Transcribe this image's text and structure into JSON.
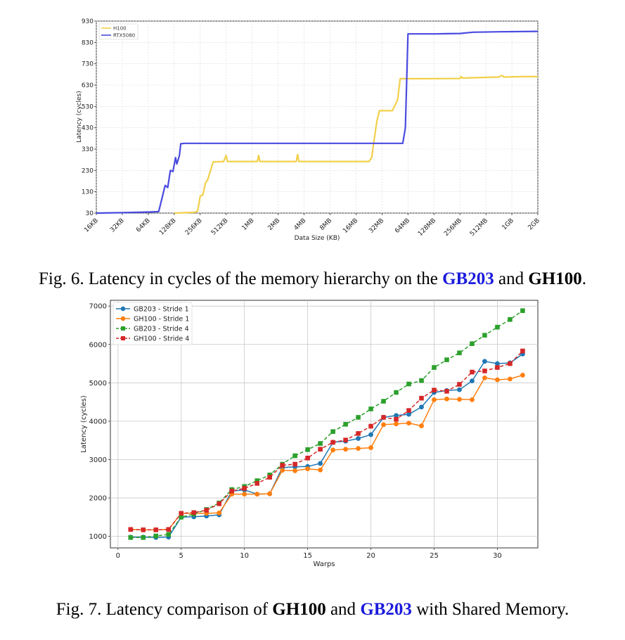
{
  "chart_data": [
    {
      "type": "line",
      "title": "",
      "xlabel": "Data Size (KB)",
      "ylabel": "Latency (cycles)",
      "x_ticks": [
        "16KB",
        "32KB",
        "64KB",
        "128KB",
        "256KB",
        "512KB",
        "1MB",
        "2MB",
        "4MB",
        "8MB",
        "16MB",
        "32MB",
        "64MB",
        "128MB",
        "256MB",
        "512MB",
        "1GB",
        "2GB"
      ],
      "y_ticks": [
        30,
        130,
        230,
        330,
        430,
        530,
        630,
        730,
        830,
        930
      ],
      "ylim": [
        30,
        930
      ],
      "grid": true,
      "legend": "top-left",
      "series": [
        {
          "name": "H100",
          "color": "#f2d04a",
          "points": [
            [
              3.0,
              30
            ],
            [
              3.6,
              33
            ],
            [
              3.8,
              34
            ],
            [
              3.9,
              40
            ],
            [
              4.0,
              110
            ],
            [
              4.1,
              115
            ],
            [
              4.2,
              170
            ],
            [
              4.3,
              190
            ],
            [
              4.5,
              270
            ],
            [
              4.9,
              272
            ],
            [
              5.0,
              300
            ],
            [
              5.05,
              272
            ],
            [
              6.2,
              272
            ],
            [
              6.25,
              300
            ],
            [
              6.3,
              272
            ],
            [
              7.7,
              272
            ],
            [
              7.75,
              305
            ],
            [
              7.8,
              272
            ],
            [
              10.5,
              272
            ],
            [
              10.6,
              290
            ],
            [
              10.8,
              460
            ],
            [
              10.9,
              510
            ],
            [
              11.4,
              510
            ],
            [
              11.6,
              560
            ],
            [
              11.7,
              660
            ],
            [
              12.5,
              660
            ],
            [
              14.0,
              661
            ],
            [
              14.05,
              670
            ],
            [
              14.1,
              663
            ],
            [
              15.5,
              668
            ],
            [
              15.6,
              675
            ],
            [
              15.7,
              668
            ],
            [
              16.5,
              670
            ],
            [
              17.0,
              670
            ]
          ]
        },
        {
          "name": "RTX5080",
          "color": "#4a4ae0",
          "points": [
            [
              0,
              30
            ],
            [
              1.0,
              32
            ],
            [
              2.0,
              35
            ],
            [
              2.4,
              37
            ],
            [
              2.55,
              110
            ],
            [
              2.65,
              160
            ],
            [
              2.75,
              150
            ],
            [
              2.85,
              230
            ],
            [
              2.95,
              225
            ],
            [
              3.05,
              290
            ],
            [
              3.1,
              260
            ],
            [
              3.2,
              300
            ],
            [
              3.25,
              355
            ],
            [
              3.4,
              357
            ],
            [
              5.0,
              357
            ],
            [
              10.0,
              357
            ],
            [
              11.8,
              357
            ],
            [
              11.9,
              430
            ],
            [
              12.0,
              870
            ],
            [
              13.0,
              870
            ],
            [
              14.0,
              872
            ],
            [
              14.5,
              878
            ],
            [
              15.5,
              880
            ],
            [
              17.0,
              882
            ]
          ]
        }
      ]
    },
    {
      "type": "line",
      "title": "",
      "xlabel": "Warps",
      "ylabel": "Latency (cycles)",
      "x": [
        1,
        2,
        3,
        4,
        5,
        6,
        7,
        8,
        9,
        10,
        11,
        12,
        13,
        14,
        15,
        16,
        17,
        18,
        19,
        20,
        21,
        22,
        23,
        24,
        25,
        26,
        27,
        28,
        29,
        30,
        31,
        32
      ],
      "x_ticks": [
        0,
        5,
        10,
        15,
        20,
        25,
        30
      ],
      "y_ticks": [
        1000,
        2000,
        3000,
        4000,
        5000,
        6000,
        7000
      ],
      "xlim": [
        -0.6,
        33.2
      ],
      "ylim": [
        700,
        7150
      ],
      "grid": true,
      "legend": "top-left",
      "series": [
        {
          "name": "GB203 - Stride 1",
          "color": "#1f77b4",
          "dash": false,
          "marker": "circle",
          "values": [
            980,
            980,
            970,
            980,
            1500,
            1510,
            1530,
            1560,
            2180,
            2210,
            2100,
            2110,
            2790,
            2810,
            2820,
            2900,
            3450,
            3480,
            3550,
            3650,
            4100,
            4150,
            4180,
            4370,
            4750,
            4800,
            4820,
            5050,
            5560,
            5500,
            5520,
            5750
          ]
        },
        {
          "name": "GH100 - Stride 1",
          "color": "#ff7f0e",
          "dash": false,
          "marker": "circle",
          "values": [
            1180,
            1170,
            1170,
            1180,
            1600,
            1600,
            1600,
            1610,
            2100,
            2100,
            2100,
            2110,
            2720,
            2710,
            2760,
            2730,
            3250,
            3270,
            3290,
            3310,
            3910,
            3930,
            3950,
            3880,
            4560,
            4580,
            4570,
            4560,
            5130,
            5080,
            5100,
            5200
          ]
        },
        {
          "name": "GB203 - Stride 4",
          "color": "#2ca02c",
          "dash": true,
          "marker": "square",
          "values": [
            970,
            970,
            1010,
            1050,
            1500,
            1580,
            1700,
            1870,
            2220,
            2300,
            2450,
            2600,
            2880,
            3100,
            3260,
            3420,
            3730,
            3920,
            4100,
            4320,
            4520,
            4750,
            4970,
            5060,
            5400,
            5600,
            5780,
            6020,
            6240,
            6450,
            6650,
            6880
          ]
        },
        {
          "name": "GH100 - Stride 4",
          "color": "#d62728",
          "dash": true,
          "marker": "square",
          "values": [
            1180,
            1170,
            1170,
            1180,
            1600,
            1620,
            1680,
            1850,
            2180,
            2250,
            2380,
            2540,
            2850,
            2880,
            3040,
            3270,
            3450,
            3510,
            3680,
            3870,
            4100,
            4050,
            4280,
            4600,
            4810,
            4780,
            4960,
            5280,
            5310,
            5400,
            5500,
            5830
          ]
        }
      ]
    }
  ],
  "captions": {
    "fig6": {
      "prefix": "Fig. 6.  Latency in cycles of the memory hierarchy on the ",
      "gpu1": "GB203",
      "mid": " and ",
      "gpu2": "GH100",
      "suffix": "."
    },
    "fig7": {
      "prefix": "Fig. 7.  Latency comparison of ",
      "gpu1": "GH100",
      "mid": " and ",
      "gpu2": "GB203",
      "suffix": " with Shared Memory."
    }
  }
}
